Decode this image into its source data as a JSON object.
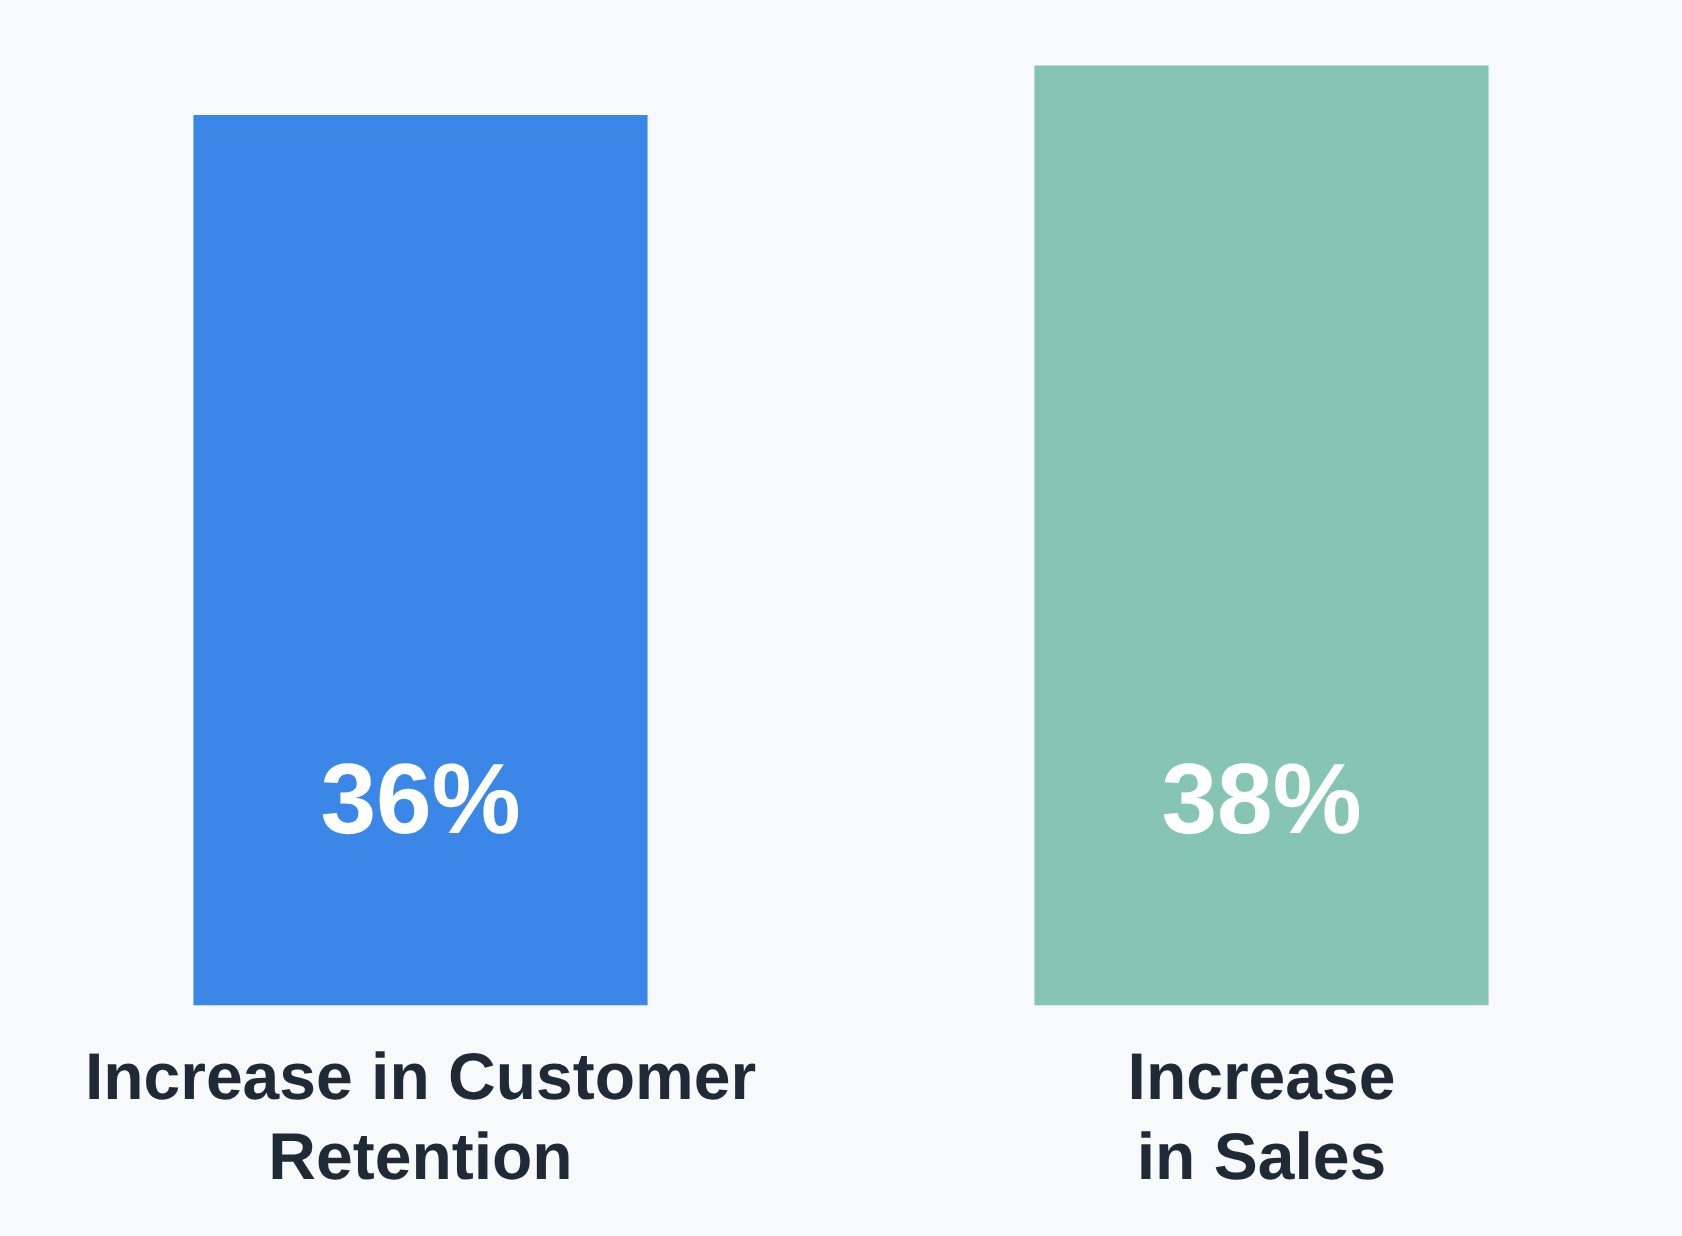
{
  "chart_data": {
    "type": "bar",
    "categories": [
      "Increase in Customer Retention",
      "Increase in Sales"
    ],
    "values": [
      36,
      38
    ],
    "colors": [
      "#3a87e8",
      "#86c5b1"
    ],
    "data_labels": true,
    "value_labels": [
      "36%",
      "38%"
    ],
    "grid": false,
    "legend": false
  }
}
